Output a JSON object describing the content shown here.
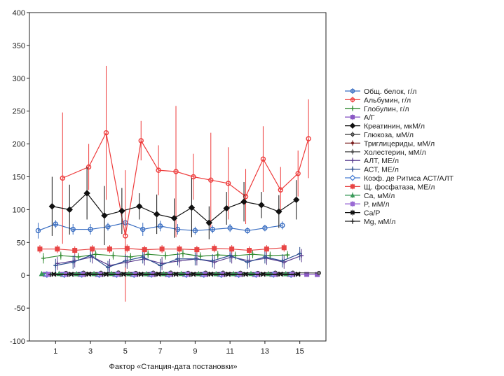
{
  "chart_data": {
    "type": "line",
    "xlabel": "Фактор «Станция-дата постановки»",
    "ylabel": "",
    "ylim": [
      -100,
      400
    ],
    "xlim": [
      -0.5,
      16.5
    ],
    "yticks": [
      -100,
      -50,
      0,
      50,
      100,
      150,
      200,
      250,
      300,
      350,
      400
    ],
    "xticks": [
      1,
      3,
      5,
      7,
      9,
      11,
      13,
      15
    ],
    "grid": false,
    "legend_position": "right",
    "error_bars": true,
    "series": [
      {
        "name": "Общ. белок, г/л",
        "color": "#3a6ec2",
        "marker": "circle",
        "x": [
          0,
          1,
          2,
          3,
          4,
          5,
          6,
          7,
          8,
          9,
          10,
          11,
          12,
          13,
          14
        ],
        "values": [
          68,
          78,
          70,
          70,
          74,
          80,
          70,
          75,
          70,
          68,
          70,
          72,
          68,
          72,
          76
        ],
        "errors": [
          12,
          6,
          8,
          8,
          6,
          8,
          10,
          8,
          8,
          6,
          6,
          6,
          5,
          5,
          6
        ]
      },
      {
        "name": "Альбумин, г/л",
        "color": "#ee3b3b",
        "marker": "circle",
        "x": [
          1.4,
          2.9,
          3.9,
          5.0,
          5.9,
          6.9,
          7.9,
          8.9,
          9.9,
          10.9,
          11.9,
          12.9,
          13.9,
          14.9,
          15.5
        ],
        "values": [
          148,
          165,
          217,
          60,
          205,
          160,
          158,
          150,
          145,
          140,
          120,
          177,
          130,
          155,
          208
        ],
        "errors": [
          100,
          35,
          102,
          100,
          30,
          38,
          100,
          35,
          72,
          55,
          42,
          50,
          35,
          35,
          60
        ]
      },
      {
        "name": "Глобулин, г/л",
        "color": "#2f8a2f",
        "marker": "plus",
        "x": [
          0.3,
          1.3,
          2.3,
          3.3,
          4.3,
          5.3,
          6.3,
          7.3,
          8.3,
          9.3,
          10.3,
          11.3,
          12.3,
          13.3,
          14.3
        ],
        "values": [
          26,
          30,
          28,
          32,
          30,
          28,
          32,
          30,
          33,
          29,
          31,
          30,
          32,
          30,
          31
        ],
        "errors": [
          8,
          6,
          6,
          6,
          6,
          6,
          6,
          6,
          6,
          6,
          6,
          6,
          6,
          6,
          6
        ]
      },
      {
        "name": "А/Г",
        "color": "#8a58c4",
        "marker": "square",
        "x": [
          0.4,
          1.4,
          2.4,
          3.4,
          4.4,
          5.4,
          6.4,
          7.4,
          8.4,
          9.4,
          10.4,
          11.4,
          12.4,
          13.4,
          14.4,
          15.4,
          16.0
        ],
        "values": [
          1.5,
          1.4,
          1.5,
          1.3,
          1.4,
          1.5,
          1.4,
          1.3,
          1.5,
          1.4,
          1.5,
          1.4,
          1.3,
          1.4,
          1.5,
          1.4,
          1.2
        ],
        "errors": [
          0.5,
          0.5,
          0.5,
          0.5,
          0.5,
          0.5,
          0.5,
          0.5,
          0.5,
          0.5,
          0.5,
          0.5,
          0.5,
          0.5,
          0.5,
          0.5,
          0.5
        ]
      },
      {
        "name": "Креатинин, мкМ/л",
        "color": "#111111",
        "marker": "diamond",
        "x": [
          0.8,
          1.8,
          2.8,
          3.8,
          4.8,
          5.8,
          6.8,
          7.8,
          8.8,
          9.8,
          10.8,
          11.8,
          12.8,
          13.8,
          14.8
        ],
        "values": [
          105,
          100,
          125,
          91,
          98,
          105,
          93,
          87,
          103,
          80,
          102,
          112,
          107,
          97,
          115
        ],
        "errors": [
          45,
          38,
          40,
          45,
          35,
          20,
          30,
          30,
          45,
          25,
          25,
          30,
          20,
          25,
          30
        ]
      },
      {
        "name": "Глюкоза, мМ/л",
        "color": "#333333",
        "marker": "circle-open",
        "x": [
          1.6,
          2.6,
          3.6,
          4.6,
          5.6,
          6.6,
          7.6,
          8.6,
          9.6,
          10.6,
          11.6,
          12.6,
          13.6,
          14.6,
          16.1
        ],
        "values": [
          3.5,
          4.0,
          3.8,
          4.2,
          3.6,
          3.9,
          4.1,
          3.7,
          3.9,
          4.0,
          3.8,
          3.6,
          4.0,
          3.9,
          3.5
        ],
        "errors": [
          1.5,
          1.5,
          1.5,
          1.5,
          1.5,
          1.5,
          1.5,
          1.5,
          1.5,
          1.5,
          1.5,
          1.5,
          1.5,
          1.5,
          1.5
        ]
      },
      {
        "name": "Триглицериды, мМ/л",
        "color": "#7a1f1f",
        "marker": "dot",
        "x": [
          1.5,
          2.5,
          3.5,
          4.5,
          5.5,
          6.5,
          7.5,
          8.5,
          9.5,
          10.5,
          11.5,
          12.5,
          13.5,
          14.5
        ],
        "values": [
          0.8,
          0.9,
          0.7,
          0.8,
          0.9,
          0.7,
          0.8,
          0.9,
          0.8,
          0.7,
          0.8,
          0.9,
          0.8,
          0.7
        ],
        "errors": [
          0.4,
          0.4,
          0.4,
          0.4,
          0.4,
          0.4,
          0.4,
          0.4,
          0.4,
          0.4,
          0.4,
          0.4,
          0.4,
          0.4
        ]
      },
      {
        "name": "Холестерин, мМ/л",
        "color": "#555555",
        "marker": "dot",
        "x": [
          1.7,
          2.7,
          3.7,
          4.7,
          5.7,
          6.7,
          7.7,
          8.7,
          9.7,
          10.7,
          11.7,
          12.7,
          13.7,
          14.7
        ],
        "values": [
          2.5,
          2.8,
          2.6,
          2.9,
          2.7,
          2.6,
          2.8,
          2.7,
          2.9,
          2.6,
          2.7,
          2.8,
          2.6,
          2.7
        ],
        "errors": [
          1.0,
          1.0,
          1.0,
          1.0,
          1.0,
          1.0,
          1.0,
          1.0,
          1.0,
          1.0,
          1.0,
          1.0,
          1.0,
          1.0
        ]
      },
      {
        "name": "АЛТ, МЕ/л",
        "color": "#5a3d8f",
        "marker": "plus",
        "x": [
          1.1,
          2.1,
          3.1,
          4.1,
          5.1,
          6.1,
          7.1,
          8.1,
          9.1,
          10.1,
          11.1,
          12.1,
          13.1,
          14.1,
          15.1
        ],
        "values": [
          18,
          22,
          28,
          15,
          20,
          25,
          18,
          22,
          25,
          20,
          28,
          22,
          26,
          20,
          30
        ],
        "errors": [
          10,
          10,
          10,
          10,
          10,
          10,
          10,
          10,
          10,
          10,
          10,
          10,
          10,
          10,
          10
        ]
      },
      {
        "name": "АСТ, МЕ/л",
        "color": "#2a4c8f",
        "marker": "plus",
        "x": [
          1.0,
          2.0,
          3.0,
          4.0,
          5.0,
          6.0,
          7.0,
          8.0,
          9.0,
          10.0,
          11.0,
          12.0,
          13.0,
          14.0,
          15.0
        ],
        "values": [
          15,
          20,
          30,
          12,
          22,
          28,
          15,
          25,
          25,
          22,
          30,
          20,
          28,
          22,
          33
        ],
        "errors": [
          10,
          10,
          10,
          10,
          10,
          10,
          10,
          10,
          10,
          10,
          10,
          10,
          10,
          10,
          10
        ]
      },
      {
        "name": "Коэф. де Ритиса АСТ/АЛТ",
        "color": "#4a7fd4",
        "marker": "diamond-open",
        "x": [
          0.5,
          1.5,
          2.5,
          3.5,
          4.5,
          5.5,
          6.5,
          7.5,
          8.5,
          9.5,
          10.5,
          11.5,
          12.5,
          13.5,
          14.5
        ],
        "values": [
          1.2,
          1.1,
          1.3,
          1.0,
          1.2,
          1.1,
          1.3,
          1.2,
          1.1,
          1.2,
          1.0,
          1.1,
          1.2,
          1.3,
          1.1
        ],
        "errors": [
          0.5,
          0.5,
          0.5,
          0.5,
          0.5,
          0.5,
          0.5,
          0.5,
          0.5,
          0.5,
          0.5,
          0.5,
          0.5,
          0.5,
          0.5
        ]
      },
      {
        "name": "Щ. фосфатаза, МЕ/л",
        "color": "#e84545",
        "marker": "square",
        "x": [
          0.1,
          1.1,
          2.1,
          3.1,
          4.1,
          5.1,
          6.1,
          7.1,
          8.1,
          9.1,
          10.1,
          11.1,
          12.1,
          13.1,
          14.1
        ],
        "values": [
          40,
          40,
          38,
          40,
          40,
          41,
          39,
          40,
          40,
          39,
          41,
          40,
          38,
          40,
          42
        ],
        "errors": [
          6,
          6,
          6,
          6,
          6,
          6,
          6,
          6,
          6,
          6,
          6,
          6,
          6,
          6,
          6
        ]
      },
      {
        "name": "Ca, мМ/л",
        "color": "#3a9a5a",
        "marker": "triangle",
        "x": [
          0.2,
          1.2,
          2.2,
          3.2,
          4.2,
          5.2,
          6.2,
          7.2,
          8.2,
          9.2,
          10.2,
          11.2,
          12.2,
          13.2,
          14.2
        ],
        "values": [
          2.5,
          2.6,
          2.4,
          2.5,
          2.6,
          2.5,
          2.4,
          2.5,
          2.6,
          2.5,
          2.4,
          2.5,
          2.6,
          2.5,
          2.4
        ],
        "errors": [
          0.5,
          0.5,
          0.5,
          0.5,
          0.5,
          0.5,
          0.5,
          0.5,
          0.5,
          0.5,
          0.5,
          0.5,
          0.5,
          0.5,
          0.5
        ]
      },
      {
        "name": "P, мМ/л",
        "color": "#9a6ad4",
        "marker": "square",
        "x": [
          0.6,
          1.6,
          2.6,
          3.6,
          4.6,
          5.6,
          6.6,
          7.6,
          8.6,
          9.6,
          10.6,
          11.6,
          12.6,
          13.6,
          14.6
        ],
        "values": [
          1.5,
          1.6,
          1.4,
          1.5,
          1.6,
          1.5,
          1.4,
          1.5,
          1.6,
          1.5,
          1.4,
          1.5,
          1.6,
          1.5,
          1.4
        ],
        "errors": [
          0.4,
          0.4,
          0.4,
          0.4,
          0.4,
          0.4,
          0.4,
          0.4,
          0.4,
          0.4,
          0.4,
          0.4,
          0.4,
          0.4,
          0.4
        ]
      },
      {
        "name": "Ca/P",
        "color": "#111111",
        "marker": "star",
        "x": [
          0.9,
          1.9,
          2.9,
          3.9,
          4.9,
          5.9,
          6.9,
          7.9,
          8.9,
          9.9,
          10.9,
          11.9,
          12.9,
          13.9,
          14.9
        ],
        "values": [
          1.7,
          1.6,
          1.8,
          1.7,
          1.6,
          1.7,
          1.8,
          1.6,
          1.7,
          1.8,
          1.7,
          1.6,
          1.7,
          1.8,
          1.7
        ],
        "errors": [
          0.4,
          0.4,
          0.4,
          0.4,
          0.4,
          0.4,
          0.4,
          0.4,
          0.4,
          0.4,
          0.4,
          0.4,
          0.4,
          0.4,
          0.4
        ]
      },
      {
        "name": "Mg, мМ/л",
        "color": "#222222",
        "marker": "plus",
        "x": [
          0.7,
          1.7,
          2.7,
          3.7,
          4.7,
          5.7,
          6.7,
          7.7,
          8.7,
          9.7,
          10.7,
          11.7,
          12.7,
          13.7,
          14.7
        ],
        "values": [
          0.9,
          1.0,
          0.9,
          1.0,
          0.9,
          1.0,
          0.9,
          1.0,
          0.9,
          1.0,
          0.9,
          1.0,
          0.9,
          1.0,
          0.9
        ],
        "errors": [
          0.3,
          0.3,
          0.3,
          0.3,
          0.3,
          0.3,
          0.3,
          0.3,
          0.3,
          0.3,
          0.3,
          0.3,
          0.3,
          0.3,
          0.3
        ]
      }
    ]
  }
}
